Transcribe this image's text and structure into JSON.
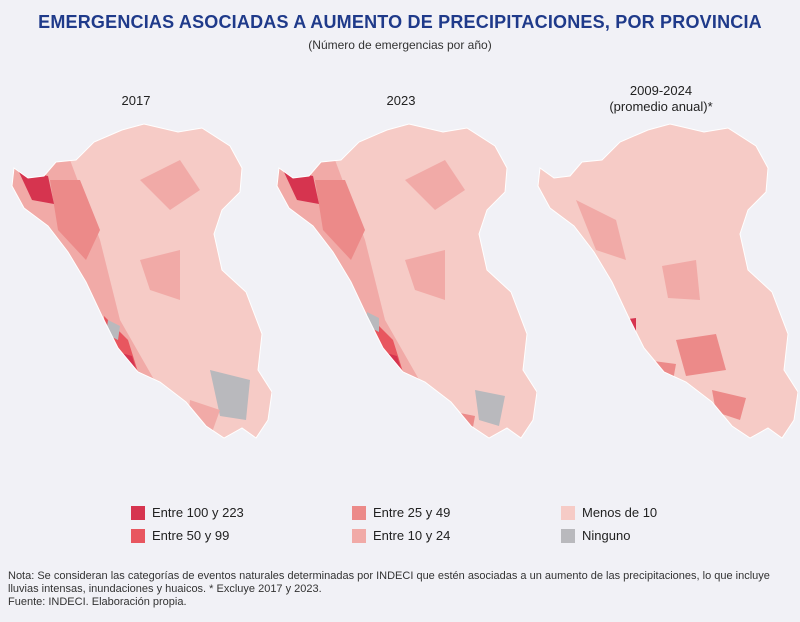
{
  "title": "EMERGENCIAS ASOCIADAS A AUMENTO DE PRECIPITACIONES, POR PROVINCIA",
  "subtitle": "(Número de emergencias por año)",
  "maps": [
    {
      "label": "2017",
      "sublabel": ""
    },
    {
      "label": "2023",
      "sublabel": ""
    },
    {
      "label": "2009-2024",
      "sublabel": "(promedio anual)*"
    }
  ],
  "legend": [
    {
      "label": "Entre 100 y 223",
      "color": "#d6344f"
    },
    {
      "label": "Entre 50 y 99",
      "color": "#e8565f"
    },
    {
      "label": "Entre 25 y 49",
      "color": "#ec8a89"
    },
    {
      "label": "Entre 10 y 24",
      "color": "#f1aaa7"
    },
    {
      "label": "Menos de 10",
      "color": "#f6cbc6"
    },
    {
      "label": "Ninguno",
      "color": "#b9b9bd"
    }
  ],
  "notes": {
    "line1": "Nota: Se consideran las categorías de eventos naturales determinadas por INDECI que estén asociadas a un aumento de las precipitaciones, lo que incluye",
    "line2": "lluvias intensas, inundaciones y huaicos. * Excluye 2017 y 2023.",
    "source": "Fuente: INDECI. Elaboración propia."
  }
}
